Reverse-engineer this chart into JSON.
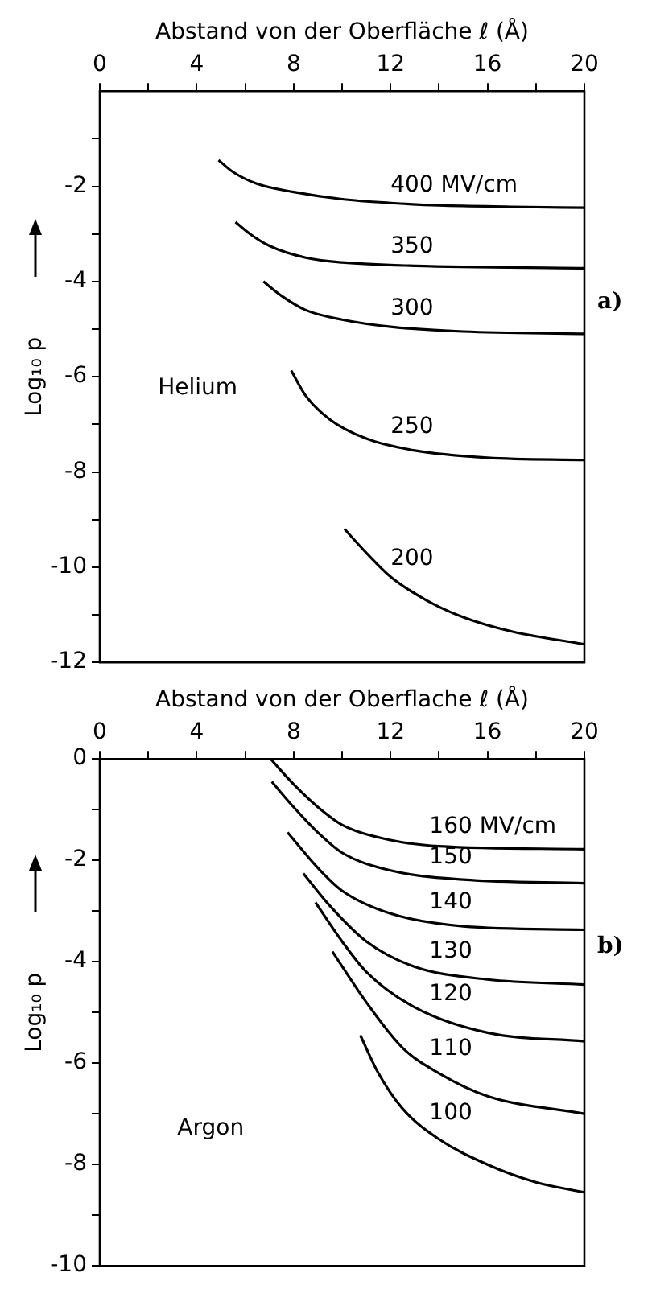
{
  "chart_data": [
    {
      "type": "line",
      "xlabel": "Abstand von der Oberfläche ℓ (Å)",
      "ylabel": "Log₁₀ p",
      "xlim": [
        0,
        20
      ],
      "xticks": [
        0,
        {
          "value": 2,
          "label": null
        },
        4,
        {
          "value": 6,
          "label": null
        },
        8,
        {
          "value": 10,
          "label": null
        },
        12,
        {
          "value": 14,
          "label": null
        },
        16,
        {
          "value": 18,
          "label": null
        },
        20
      ],
      "ylim": [
        -12,
        0
      ],
      "yticks": [
        {
          "value": -1,
          "label": null
        },
        -2,
        {
          "value": -3,
          "label": null
        },
        -4,
        {
          "value": -5,
          "label": null
        },
        -6,
        {
          "value": -7,
          "label": null
        },
        -8,
        {
          "value": -9,
          "label": null
        },
        -10,
        {
          "value": -11,
          "label": null
        },
        -12
      ],
      "grid": false,
      "marker": "none",
      "line_style": "solid",
      "annotations": [
        "Helium",
        "a)"
      ],
      "series": [
        {
          "name": "400 MV/cm",
          "color": "#000000",
          "x": [
            4.9,
            5.5,
            6.5,
            8,
            10,
            12,
            14,
            17,
            20
          ],
          "values": [
            -1.45,
            -1.7,
            -1.95,
            -2.12,
            -2.27,
            -2.35,
            -2.4,
            -2.43,
            -2.45
          ]
        },
        {
          "name": "350",
          "color": "#000000",
          "x": [
            5.6,
            6.2,
            7,
            8.5,
            10,
            13,
            20
          ],
          "values": [
            -2.75,
            -3.0,
            -3.25,
            -3.5,
            -3.6,
            -3.67,
            -3.72
          ]
        },
        {
          "name": "300",
          "color": "#000000",
          "x": [
            6.75,
            7.5,
            8.5,
            10,
            12,
            15,
            20
          ],
          "values": [
            -4.0,
            -4.3,
            -4.6,
            -4.8,
            -4.95,
            -5.05,
            -5.1
          ]
        },
        {
          "name": "250",
          "color": "#000000",
          "x": [
            7.9,
            8.5,
            9.5,
            11,
            13,
            16,
            20
          ],
          "values": [
            -5.87,
            -6.4,
            -6.9,
            -7.3,
            -7.55,
            -7.7,
            -7.75
          ]
        },
        {
          "name": "200",
          "color": "#000000",
          "x": [
            10.1,
            11,
            12,
            13.5,
            15,
            17,
            20
          ],
          "values": [
            -9.2,
            -9.7,
            -10.2,
            -10.7,
            -11.05,
            -11.35,
            -11.62
          ]
        }
      ]
    },
    {
      "type": "line",
      "xlabel": "Abstand von der Oberflache ℓ (Å)",
      "ylabel": "Log₁₀ p",
      "xlim": [
        0,
        20
      ],
      "xticks": [
        0,
        {
          "value": 2,
          "label": null
        },
        4,
        {
          "value": 6,
          "label": null
        },
        8,
        {
          "value": 10,
          "label": null
        },
        12,
        {
          "value": 14,
          "label": null
        },
        16,
        {
          "value": 18,
          "label": null
        },
        20
      ],
      "ylim": [
        -10,
        0
      ],
      "yticks": [
        0,
        {
          "value": -1,
          "label": null
        },
        -2,
        {
          "value": -3,
          "label": null
        },
        -4,
        {
          "value": -5,
          "label": null
        },
        -6,
        {
          "value": -7,
          "label": null
        },
        -8,
        {
          "value": -9,
          "label": null
        },
        -10
      ],
      "grid": false,
      "marker": "none",
      "line_style": "solid",
      "annotations": [
        "Argon",
        "b)"
      ],
      "series": [
        {
          "name": "160 MV/cm",
          "color": "#000000",
          "x": [
            7.05,
            8,
            9,
            10,
            12,
            14,
            20
          ],
          "values": [
            0,
            -0.5,
            -0.95,
            -1.3,
            -1.6,
            -1.72,
            -1.78
          ]
        },
        {
          "name": "150",
          "color": "#000000",
          "x": [
            7.1,
            8,
            9,
            10,
            12,
            15,
            20
          ],
          "values": [
            -0.45,
            -0.95,
            -1.45,
            -1.85,
            -2.2,
            -2.38,
            -2.45
          ]
        },
        {
          "name": "140",
          "color": "#000000",
          "x": [
            7.75,
            9,
            10,
            12,
            15,
            20
          ],
          "values": [
            -1.45,
            -2.15,
            -2.6,
            -3.05,
            -3.3,
            -3.37
          ]
        },
        {
          "name": "130",
          "color": "#000000",
          "x": [
            8.4,
            9.5,
            11,
            13,
            16,
            20
          ],
          "values": [
            -2.26,
            -2.9,
            -3.6,
            -4.1,
            -4.35,
            -4.45
          ]
        },
        {
          "name": "120",
          "color": "#000000",
          "x": [
            8.9,
            10,
            11,
            13,
            16,
            20
          ],
          "values": [
            -2.83,
            -3.6,
            -4.2,
            -4.9,
            -5.4,
            -5.57
          ]
        },
        {
          "name": "110",
          "color": "#000000",
          "x": [
            9.6,
            11,
            12.5,
            14,
            16,
            20
          ],
          "values": [
            -3.8,
            -4.8,
            -5.7,
            -6.2,
            -6.65,
            -7.0
          ]
        },
        {
          "name": "100",
          "color": "#000000",
          "x": [
            10.75,
            11.5,
            12.5,
            14,
            16,
            18,
            20
          ],
          "values": [
            -5.45,
            -6.2,
            -6.9,
            -7.5,
            -8.0,
            -8.35,
            -8.55
          ]
        }
      ]
    }
  ]
}
